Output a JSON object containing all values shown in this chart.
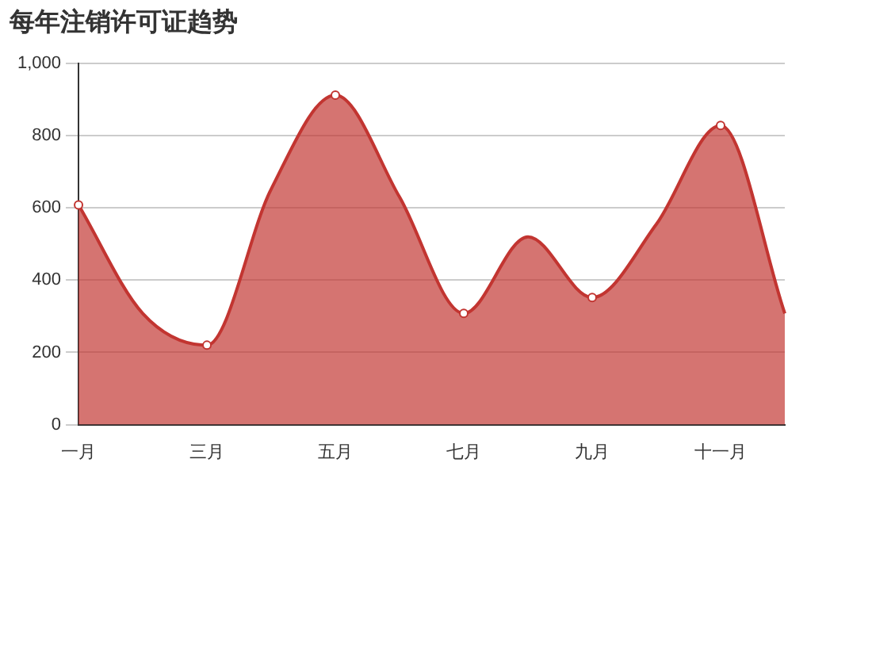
{
  "chart_data": {
    "type": "area",
    "title": "每年注销许可证趋势",
    "categories": [
      "一月",
      null,
      "三月",
      null,
      "五月",
      null,
      "七月",
      null,
      "九月",
      null,
      "十一月",
      null
    ],
    "series": [
      {
        "color": "#c23531",
        "values": [
          608,
          308,
          220,
          652,
          912,
          630,
          308,
          520,
          352,
          555,
          828,
          308
        ]
      }
    ],
    "ylim": [
      0,
      1000
    ],
    "yticks": [
      0,
      200,
      400,
      600,
      800,
      {
        "value": 1000,
        "label": "1,000"
      }
    ],
    "grid": "y",
    "legend": false,
    "marker": "circle"
  }
}
